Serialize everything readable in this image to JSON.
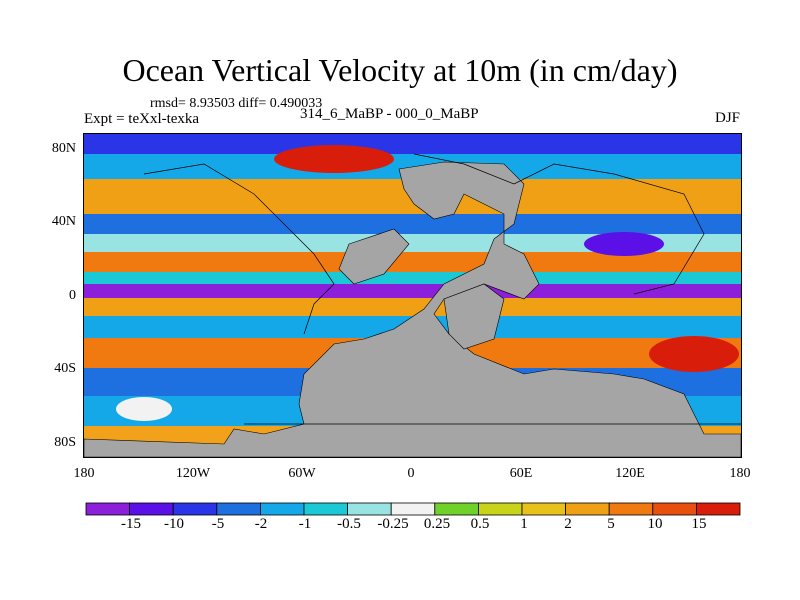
{
  "title": "Ocean Vertical Velocity at 10m (in cm/day)",
  "stats": "rmsd= 8.93503  diff= 0.490033",
  "left_label": "Expt = teXxl-texka",
  "center_label": "314_6_MaBP - 000_0_MaBP",
  "right_label": "DJF",
  "lat_labels": [
    "80N",
    "40N",
    "0",
    "40S",
    "80S"
  ],
  "lon_labels": [
    "180",
    "120W",
    "60W",
    "0",
    "60E",
    "120E",
    "180"
  ],
  "colorbar": {
    "labels": [
      "-15",
      "-10",
      "-5",
      "-2",
      "-1",
      "-0.5",
      "-0.25",
      "0.25",
      "0.5",
      "1",
      "2",
      "5",
      "10",
      "15"
    ],
    "colors": [
      "#8c1fd9",
      "#5a10e6",
      "#2a35e8",
      "#1e6fe0",
      "#14a8e8",
      "#1ac8d6",
      "#9ae3e3",
      "#f2f2f2",
      "#6fd12a",
      "#c8d41a",
      "#e8c21a",
      "#f0a014",
      "#f07a10",
      "#e8500e",
      "#d81e0a"
    ]
  },
  "map_colors": {
    "land": "#a5a5a5",
    "ocean_base": "#f2f2f2"
  }
}
